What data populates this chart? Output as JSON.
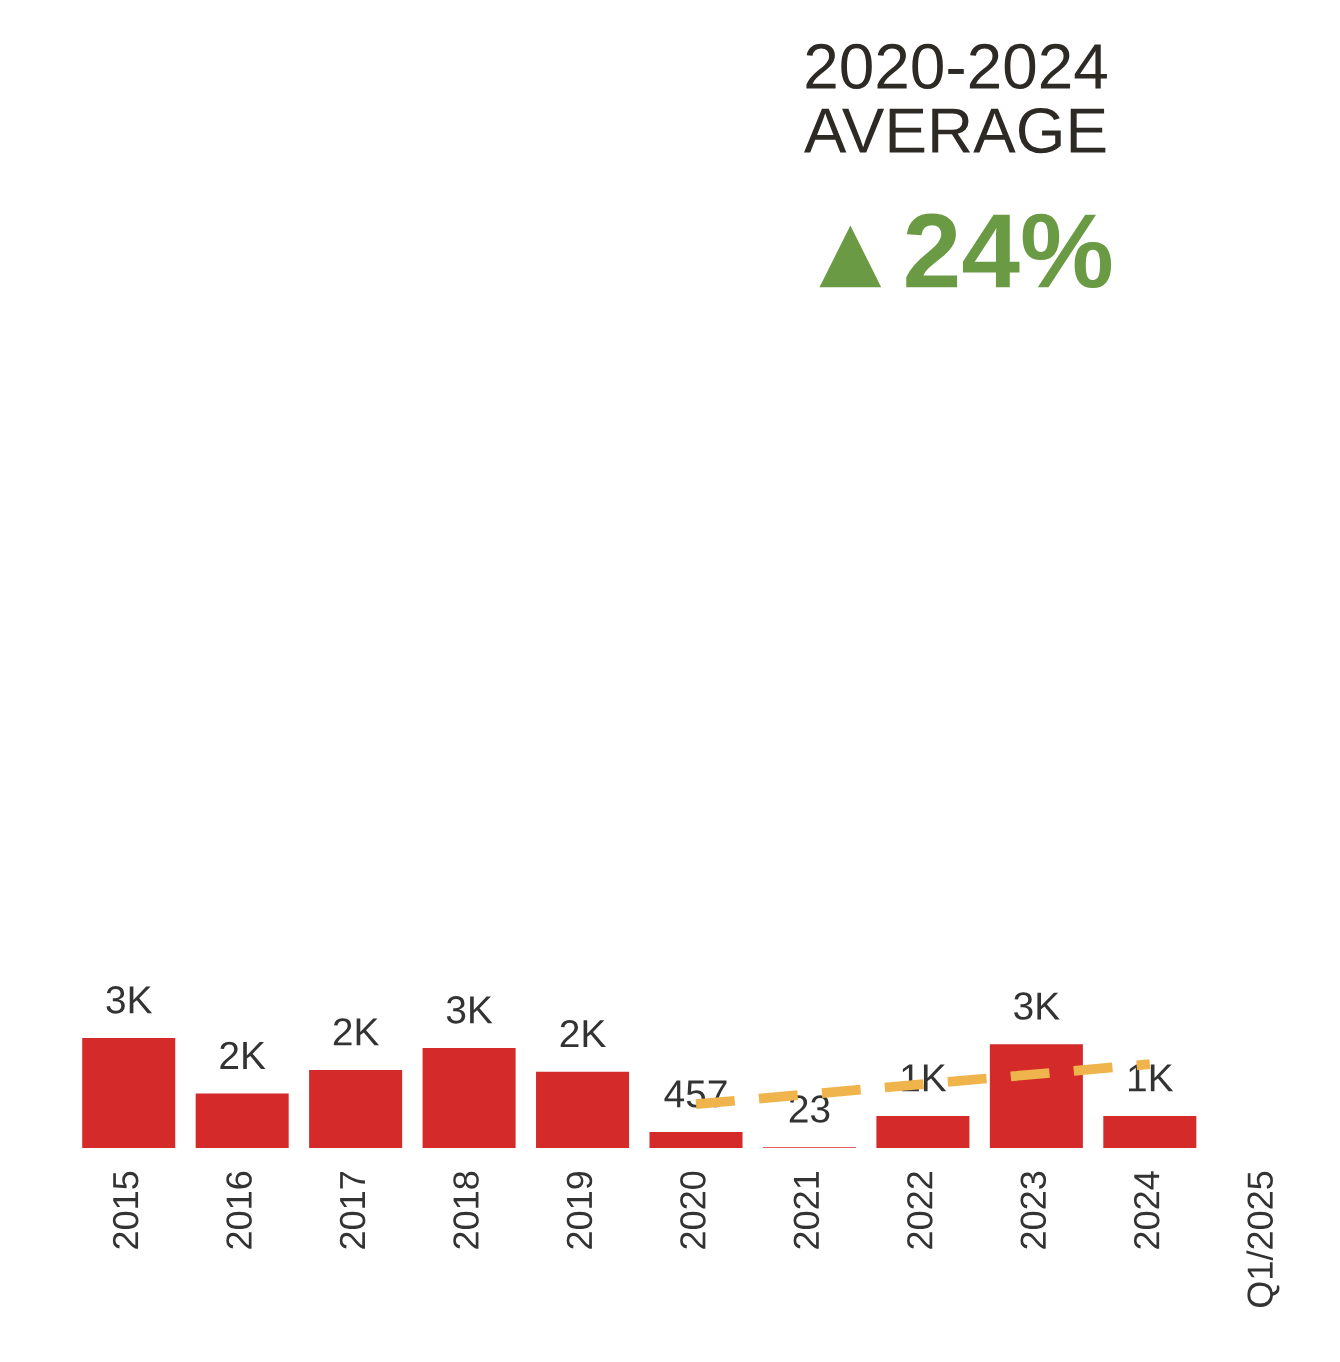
{
  "chart_data": {
    "type": "bar",
    "title": "2020-2024\nAVERAGE",
    "subtitle": "▲24%",
    "categories": [
      "2015",
      "2016",
      "2017",
      "2018",
      "2019",
      "2020",
      "2021",
      "2022",
      "2023",
      "2024",
      "Q1/2025"
    ],
    "series": [
      {
        "color": "#d42a2a",
        "values": [
          3135,
          1550,
          2220,
          2850,
          2170,
          457,
          23,
          910,
          2960,
          910,
          null
        ],
        "value_labels": [
          "3K",
          "2K",
          "2K",
          "3K",
          "2K",
          "457",
          "23",
          "1K",
          "3K",
          "1K",
          null
        ]
      },
      {
        "type": "line",
        "color": "#f0b44c",
        "line_style": "dashed",
        "values": [
          null,
          null,
          null,
          null,
          null,
          1250,
          null,
          null,
          null,
          2390,
          null
        ]
      }
    ],
    "grid": false,
    "legend": false
  }
}
